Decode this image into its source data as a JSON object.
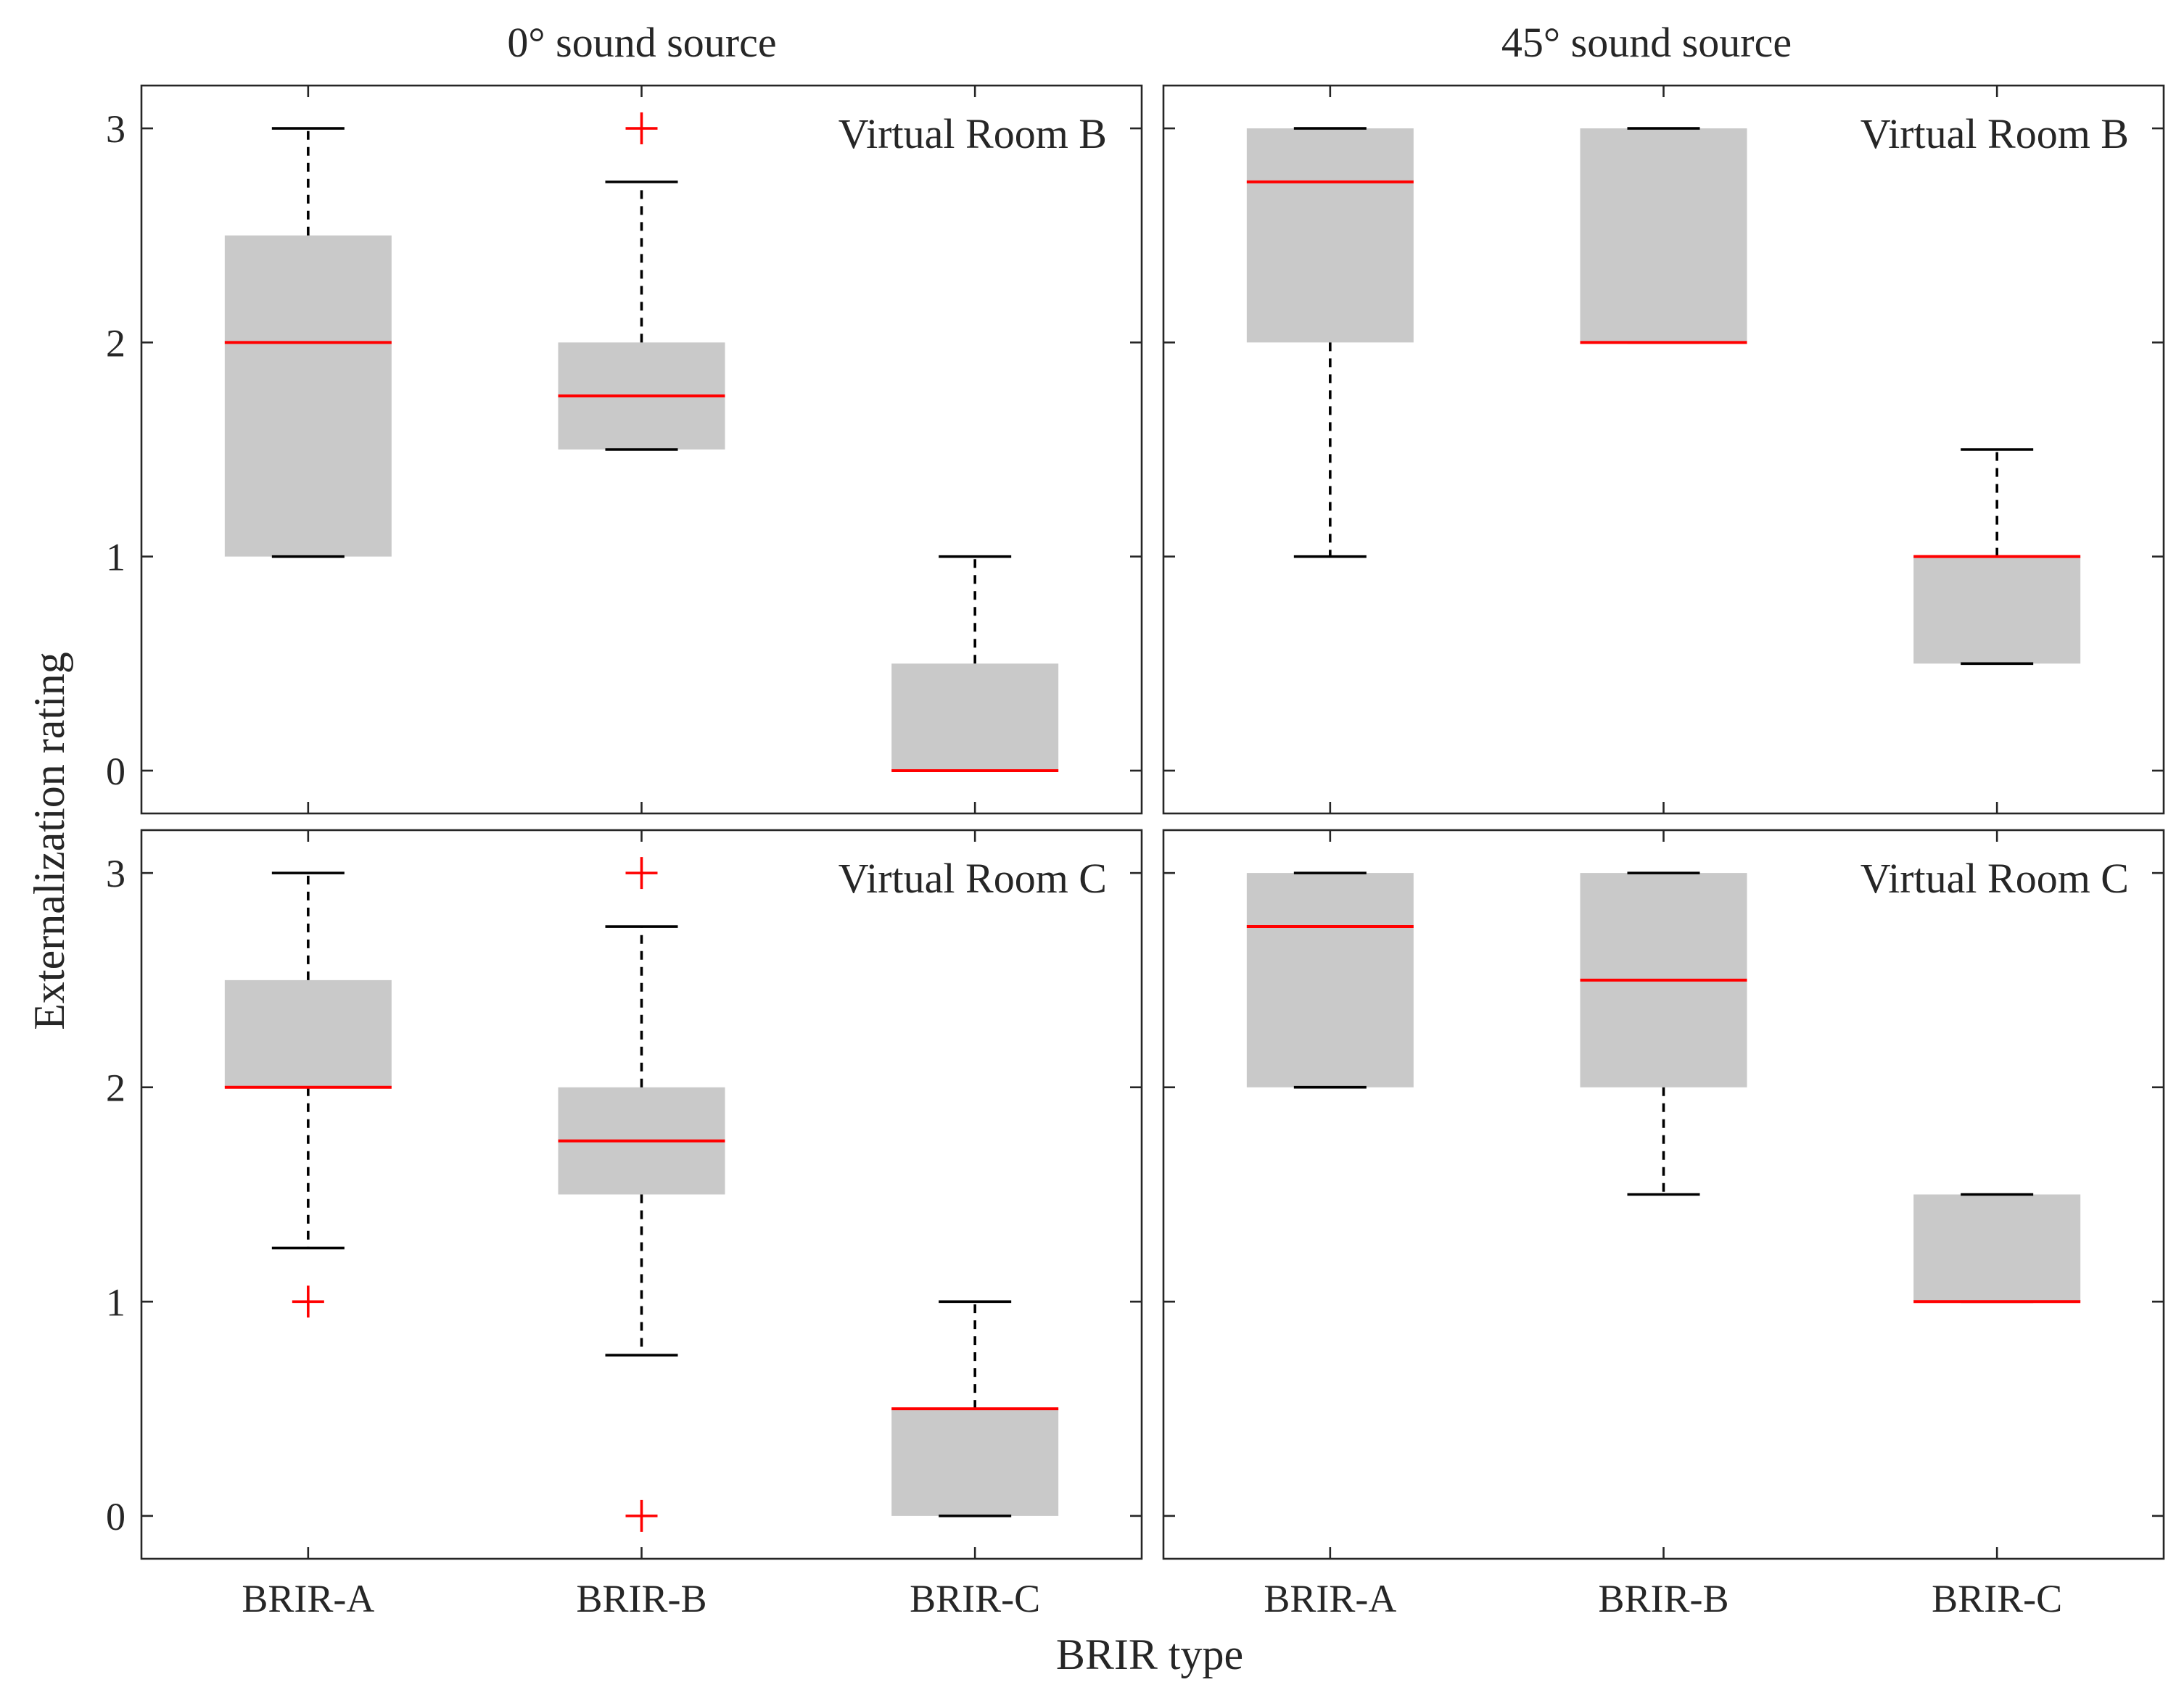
{
  "chart_data": {
    "type": "box",
    "ylabel": "Externalization rating",
    "xlabel": "BRIR type",
    "categories": [
      "BRIR-A",
      "BRIR-B",
      "BRIR-C"
    ],
    "ylim": [
      -0.2,
      3.2
    ],
    "yticks": [
      0,
      1,
      2,
      3
    ],
    "column_titles": [
      "0° sound source",
      "45° sound source"
    ],
    "colors": {
      "box": "#c9c9c9",
      "median": "#ff0000",
      "whisker": "#000000",
      "outlier": "#ff0000"
    },
    "panels": [
      {
        "column": 0,
        "row": 0,
        "room": "Virtual Room B",
        "source": "0° sound source",
        "boxes": [
          {
            "category": "BRIR-A",
            "whisker_low": 1,
            "q1": 1,
            "median": 2,
            "q3": 2.5,
            "whisker_high": 3,
            "outliers": []
          },
          {
            "category": "BRIR-B",
            "whisker_low": 1.5,
            "q1": 1.5,
            "median": 1.75,
            "q3": 2,
            "whisker_high": 2.75,
            "outliers": [
              3
            ]
          },
          {
            "category": "BRIR-C",
            "whisker_low": 0,
            "q1": 0,
            "median": 0,
            "q3": 0.5,
            "whisker_high": 1,
            "outliers": []
          }
        ]
      },
      {
        "column": 1,
        "row": 0,
        "room": "Virtual Room B",
        "source": "45° sound source",
        "boxes": [
          {
            "category": "BRIR-A",
            "whisker_low": 1,
            "q1": 2,
            "median": 2.75,
            "q3": 3,
            "whisker_high": 3,
            "outliers": []
          },
          {
            "category": "BRIR-B",
            "whisker_low": 2,
            "q1": 2,
            "median": 2,
            "q3": 3,
            "whisker_high": 3,
            "outliers": []
          },
          {
            "category": "BRIR-C",
            "whisker_low": 0.5,
            "q1": 0.5,
            "median": 1,
            "q3": 1,
            "whisker_high": 1.5,
            "outliers": []
          }
        ]
      },
      {
        "column": 0,
        "row": 1,
        "room": "Virtual Room C",
        "source": "0° sound source",
        "boxes": [
          {
            "category": "BRIR-A",
            "whisker_low": 1.25,
            "q1": 2,
            "median": 2,
            "q3": 2.5,
            "whisker_high": 3,
            "outliers": [
              1
            ]
          },
          {
            "category": "BRIR-B",
            "whisker_low": 0.75,
            "q1": 1.5,
            "median": 1.75,
            "q3": 2,
            "whisker_high": 2.75,
            "outliers": [
              3,
              0
            ]
          },
          {
            "category": "BRIR-C",
            "whisker_low": 0,
            "q1": 0,
            "median": 0.5,
            "q3": 0.5,
            "whisker_high": 1,
            "outliers": []
          }
        ]
      },
      {
        "column": 1,
        "row": 1,
        "room": "Virtual Room C",
        "source": "45° sound source",
        "boxes": [
          {
            "category": "BRIR-A",
            "whisker_low": 2,
            "q1": 2,
            "median": 2.75,
            "q3": 3,
            "whisker_high": 3,
            "outliers": []
          },
          {
            "category": "BRIR-B",
            "whisker_low": 1.5,
            "q1": 2,
            "median": 2.5,
            "q3": 3,
            "whisker_high": 3,
            "outliers": []
          },
          {
            "category": "BRIR-C",
            "whisker_low": 1,
            "q1": 1,
            "median": 1,
            "q3": 1.5,
            "whisker_high": 1.5,
            "outliers": []
          }
        ]
      }
    ]
  }
}
